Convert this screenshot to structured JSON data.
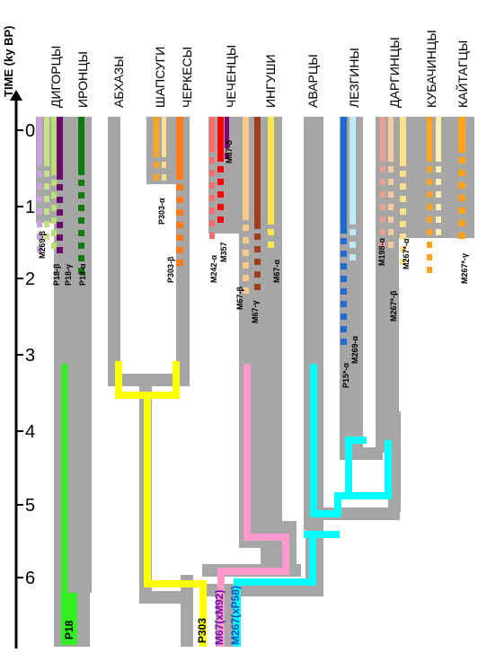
{
  "axis": {
    "title": "TIME (ky BP)",
    "ticks": [
      "0",
      "1",
      "2",
      "3",
      "4",
      "5",
      "6"
    ]
  },
  "populations": [
    "ДИГОРЦЫ",
    "ИРОНЦЫ",
    "АБХАЗЫ",
    "ШАПСУГИ",
    "ЧЕРКЕСЫ",
    "ЧЕЧЕНЦЫ",
    "ИНГУШИ",
    "АВАРЦЫ",
    "ЛЕЗГИНЫ",
    "ДАРГИНЦЫ",
    "КУБАЧИНЦЫ",
    "КАЙТАГЦЫ"
  ],
  "lineage_labels": [
    "M269-β",
    "P18-β",
    "P18-γ",
    "P18-α",
    "P303-α",
    "P303-β",
    "M242-α",
    "M357",
    "M67-δ",
    "M67-β",
    "M67-γ",
    "M67-α",
    "P15*-α",
    "M269-α",
    "M198-α",
    "M267*-α",
    "M267*-β",
    "M267*-γ"
  ],
  "root_labels": [
    "P18",
    "P303",
    "M67(xM92)",
    "M267(xP58)"
  ],
  "colors": {
    "trunk": "#a6a6a6",
    "P18": "#33ee22",
    "P303": "#ffff00",
    "M67": "#ff99cc",
    "M267": "#00ffff"
  }
}
